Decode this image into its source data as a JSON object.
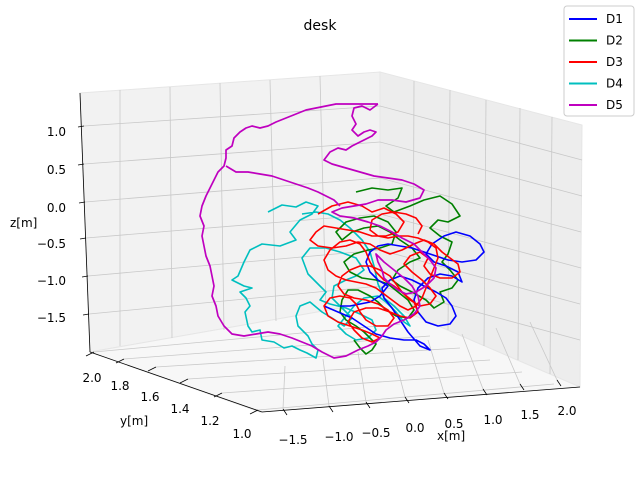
{
  "chart_data": {
    "type": "line3d",
    "title": "desk",
    "xlabel": "x[m]",
    "ylabel": "y[m]",
    "zlabel": "z[m]",
    "x_ticks": [
      "−1.5",
      "−1.0",
      "−0.5",
      "0.0",
      "0.5",
      "1.0",
      "1.5",
      "2.0"
    ],
    "y_ticks": [
      "1.0",
      "1.2",
      "1.4",
      "1.6",
      "1.8",
      "2.0"
    ],
    "z_ticks": [
      "1.0",
      "0.5",
      "0.0",
      "−0.5",
      "−1.0",
      "−1.5"
    ],
    "xlim": [
      -1.6,
      2.2
    ],
    "ylim": [
      0.9,
      2.1
    ],
    "zlim": [
      -2.0,
      1.4
    ],
    "grid": true,
    "legend_position": "top-right",
    "series": [
      {
        "name": "D1",
        "color": "#0000ff"
      },
      {
        "name": "D2",
        "color": "#008000"
      },
      {
        "name": "D3",
        "color": "#ff0000"
      },
      {
        "name": "D4",
        "color": "#00bfbf"
      },
      {
        "name": "D5",
        "color": "#bf00bf"
      }
    ]
  }
}
